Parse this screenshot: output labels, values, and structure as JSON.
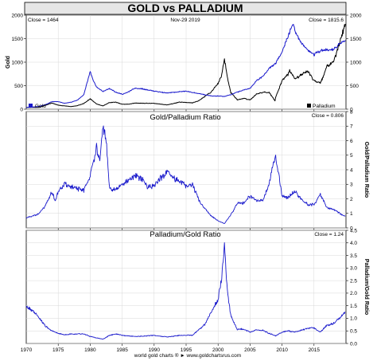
{
  "header": {
    "title": "GOLD vs PALLADIUM",
    "footer": "world gold charts ® ► www.goldchartsrus.com"
  },
  "colors": {
    "gold": "#1a1acc",
    "palladium": "#000000",
    "ratio": "#1a1acc",
    "background": "#ffffff",
    "title_band": "#e6e6e6"
  },
  "chart_data": [
    {
      "type": "line",
      "title": "",
      "top_left": "Close = 1464",
      "top_center": "Nov-29  2019",
      "top_right": "Close = 1815.6",
      "ylabel_left": "Gold",
      "ylabel_right": "",
      "ylim_left": [
        0,
        2000
      ],
      "ylim_right": [
        0,
        2000
      ],
      "yticks_left": [
        "0",
        "500",
        "1000",
        "1500",
        "2000"
      ],
      "yticks_right": [
        "0",
        "500",
        "1000",
        "1500",
        "2000"
      ],
      "legend": [
        "Gold",
        "Palladium"
      ],
      "series": [
        {
          "name": "Gold",
          "color": "#1a1acc",
          "x": [
            1970,
            1972,
            1973,
            1974,
            1975,
            1976,
            1977,
            1978,
            1979,
            1980,
            1980.5,
            1981,
            1982,
            1983,
            1984,
            1985,
            1986,
            1987,
            1988,
            1990,
            1992,
            1995,
            1997,
            1999,
            2000,
            2001,
            2002,
            2003,
            2004,
            2005,
            2006,
            2007,
            2008,
            2009,
            2010,
            2011,
            2011.7,
            2012,
            2013,
            2014,
            2015,
            2016,
            2017,
            2018,
            2019,
            2019.9
          ],
          "y": [
            35,
            58,
            97,
            159,
            160,
            125,
            148,
            193,
            307,
            800,
            600,
            470,
            376,
            440,
            360,
            317,
            368,
            447,
            437,
            384,
            344,
            384,
            331,
            279,
            279,
            271,
            310,
            363,
            409,
            445,
            604,
            696,
            872,
            972,
            1225,
            1572,
            1820,
            1669,
            1411,
            1266,
            1160,
            1250,
            1257,
            1268,
            1392,
            1464
          ]
        },
        {
          "name": "Palladium",
          "color": "#000000",
          "x": [
            1970,
            1972,
            1974,
            1975,
            1976,
            1977,
            1978,
            1979,
            1980,
            1981,
            1982,
            1983,
            1984,
            1985,
            1986,
            1987,
            1988,
            1990,
            1992,
            1994,
            1996,
            1997,
            1998,
            1999,
            2000,
            2000.5,
            2001,
            2001.5,
            2002,
            2003,
            2004,
            2005,
            2006,
            2007,
            2008,
            2008.9,
            2009,
            2010,
            2011,
            2011.2,
            2012,
            2013,
            2014,
            2015,
            2016,
            2017,
            2018,
            2019,
            2019.9
          ],
          "y": [
            36,
            38,
            130,
            85,
            70,
            55,
            75,
            120,
            220,
            110,
            70,
            140,
            150,
            105,
            105,
            130,
            125,
            125,
            90,
            150,
            135,
            180,
            280,
            375,
            550,
            700,
            1050,
            650,
            350,
            200,
            230,
            200,
            320,
            360,
            350,
            180,
            250,
            600,
            750,
            820,
            640,
            730,
            810,
            600,
            550,
            900,
            1000,
            1400,
            1815.6
          ]
        }
      ]
    },
    {
      "type": "line",
      "title": "Gold/Palladium Ratio",
      "top_right": "Close = 0.806",
      "ylabel_right": "Gold/Palladium Ratio",
      "ylim": [
        0,
        8
      ],
      "yticks": [
        "0",
        "1",
        "2",
        "3",
        "4",
        "5",
        "6",
        "7",
        "8"
      ],
      "series": [
        {
          "name": "",
          "color": "#1a1acc",
          "x": [
            1970,
            1971,
            1972,
            1973,
            1974,
            1974.5,
            1975,
            1976,
            1977,
            1978,
            1979,
            1980,
            1981,
            1981.5,
            1982,
            1982.5,
            1983,
            1984,
            1985,
            1986,
            1987,
            1988,
            1989,
            1990,
            1991,
            1992,
            1993,
            1994,
            1995,
            1996,
            1997,
            1998,
            1999,
            2000,
            2001,
            2002,
            2003,
            2004,
            2005,
            2006,
            2007,
            2008,
            2008.5,
            2009,
            2010,
            2011,
            2012,
            2013,
            2014,
            2015,
            2016,
            2017,
            2018,
            2019,
            2019.9
          ],
          "y": [
            0.7,
            0.8,
            1.0,
            1.5,
            2.5,
            1.8,
            2.5,
            3.0,
            2.8,
            2.7,
            2.6,
            3.6,
            5.5,
            4.5,
            7.0,
            6.0,
            2.8,
            2.6,
            3.0,
            3.2,
            3.6,
            3.4,
            2.8,
            2.9,
            3.4,
            3.8,
            3.4,
            3.2,
            2.9,
            3.0,
            1.9,
            1.3,
            0.8,
            0.5,
            0.3,
            0.9,
            1.7,
            1.7,
            2.2,
            1.9,
            1.9,
            3.0,
            4.2,
            4.9,
            2.2,
            2.1,
            2.5,
            2.0,
            1.6,
            1.6,
            2.3,
            1.4,
            1.3,
            1.0,
            0.806
          ]
        }
      ]
    },
    {
      "type": "line",
      "title": "Palladium/Gold Ratio",
      "top_right": "Close = 1.24",
      "ylabel_right": "Palladium/Gold Ratio",
      "ylim": [
        0,
        4.5
      ],
      "yticks": [
        "0.0",
        "0.5",
        "1.0",
        "1.5",
        "2.0",
        "2.5",
        "3.0",
        "3.5",
        "4.0",
        "4.5"
      ],
      "xticks": [
        "1970",
        "1975",
        "1980",
        "1985",
        "1990",
        "1995",
        "2000",
        "2005",
        "2010",
        "2015"
      ],
      "series": [
        {
          "name": "",
          "color": "#1a1acc",
          "x": [
            1970,
            1971,
            1972,
            1973,
            1974,
            1975,
            1976,
            1977,
            1978,
            1979,
            1980,
            1981,
            1982,
            1983,
            1984,
            1985,
            1986,
            1987,
            1988,
            1990,
            1992,
            1994,
            1996,
            1997,
            1998,
            1999,
            2000,
            2000.5,
            2000.8,
            2001,
            2001.3,
            2001.6,
            2002,
            2003,
            2004,
            2005,
            2006,
            2007,
            2008,
            2009,
            2010,
            2011,
            2012,
            2013,
            2014,
            2015,
            2016,
            2017,
            2018,
            2019,
            2019.9
          ],
          "y": [
            1.45,
            1.3,
            1.0,
            0.7,
            0.5,
            0.4,
            0.35,
            0.37,
            0.38,
            0.38,
            0.28,
            0.22,
            0.17,
            0.32,
            0.38,
            0.33,
            0.3,
            0.28,
            0.29,
            0.32,
            0.26,
            0.32,
            0.33,
            0.55,
            0.77,
            1.3,
            1.75,
            2.5,
            3.2,
            4.1,
            2.5,
            1.8,
            1.1,
            0.55,
            0.58,
            0.45,
            0.53,
            0.52,
            0.4,
            0.3,
            0.45,
            0.5,
            0.45,
            0.52,
            0.6,
            0.62,
            0.45,
            0.72,
            0.79,
            1.0,
            1.24
          ]
        }
      ]
    }
  ]
}
